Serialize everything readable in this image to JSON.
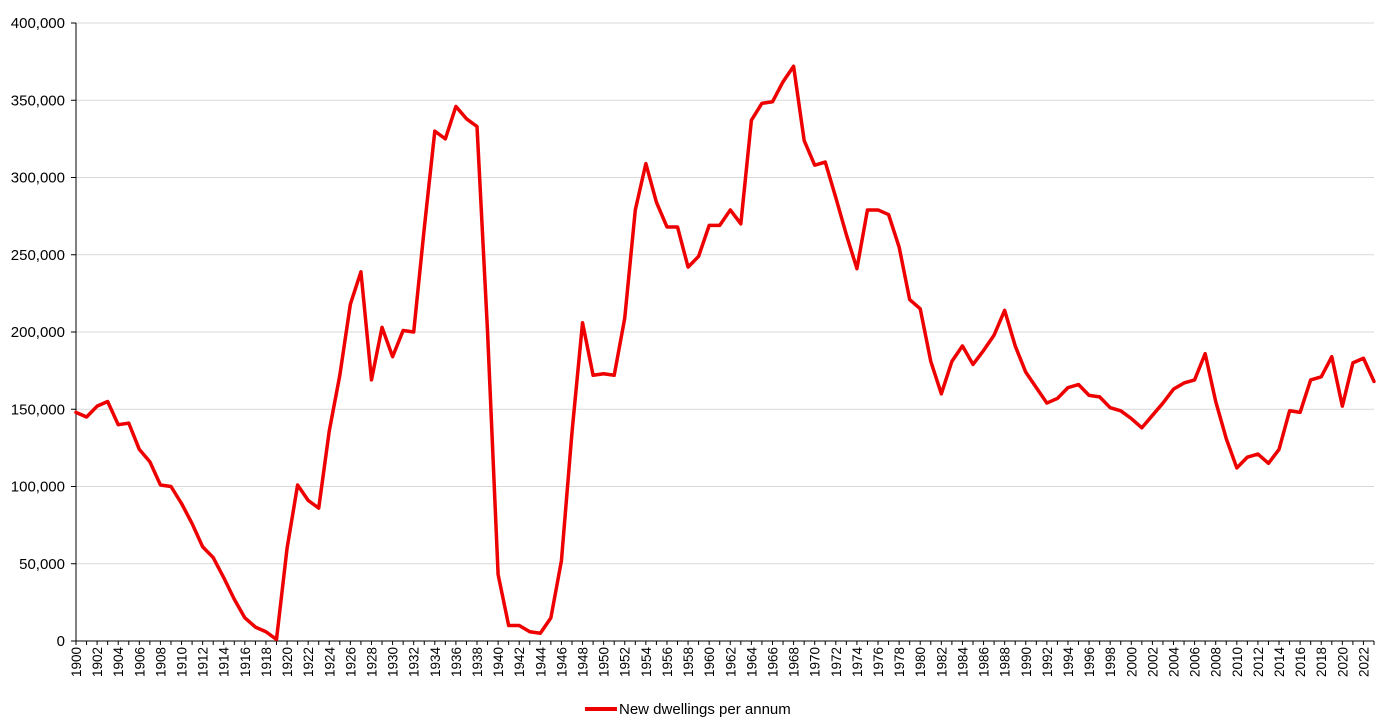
{
  "chart_data": {
    "type": "line",
    "title": "",
    "xlabel": "",
    "ylabel": "",
    "x_start": 1900,
    "x_end": 2023,
    "xlim": [
      1900,
      2023
    ],
    "ylim": [
      0,
      400000
    ],
    "yticks": [
      0,
      50000,
      100000,
      150000,
      200000,
      250000,
      300000,
      350000,
      400000
    ],
    "ytick_labels": [
      "0",
      "50,000",
      "100,000",
      "150,000",
      "200,000",
      "250,000",
      "300,000",
      "350,000",
      "400,000"
    ],
    "xtick_labels": [
      "1900",
      "1902",
      "1904",
      "1906",
      "1908",
      "1910",
      "1912",
      "1914",
      "1916",
      "1918",
      "1920",
      "1922",
      "1924",
      "1926",
      "1928",
      "1930",
      "1932",
      "1934",
      "1936",
      "1938",
      "1940",
      "1942",
      "1944",
      "1946",
      "1948",
      "1950",
      "1952",
      "1954",
      "1956",
      "1958",
      "1960",
      "1962",
      "1964",
      "1966",
      "1968",
      "1970",
      "1972",
      "1974",
      "1976",
      "1978",
      "1980",
      "1982",
      "1984",
      "1986",
      "1988",
      "1990",
      "1992",
      "1994",
      "1996",
      "1998",
      "2000",
      "2002",
      "2004",
      "2006",
      "2008",
      "2010",
      "2012",
      "2014",
      "2016",
      "2018",
      "2020",
      "2022"
    ],
    "grid": "horizontal",
    "legend_position": "bottom",
    "colors": {
      "line": "#ee0000",
      "grid": "#d9d9d9",
      "axis": "#000000"
    },
    "series": [
      {
        "name": "New dwellings per annum",
        "x": [
          1900,
          1901,
          1902,
          1903,
          1904,
          1905,
          1906,
          1907,
          1908,
          1909,
          1910,
          1911,
          1912,
          1913,
          1914,
          1915,
          1916,
          1917,
          1918,
          1919,
          1920,
          1921,
          1922,
          1923,
          1924,
          1925,
          1926,
          1927,
          1928,
          1929,
          1930,
          1931,
          1932,
          1933,
          1934,
          1935,
          1936,
          1937,
          1938,
          1939,
          1940,
          1941,
          1942,
          1943,
          1944,
          1945,
          1946,
          1947,
          1948,
          1949,
          1950,
          1951,
          1952,
          1953,
          1954,
          1955,
          1956,
          1957,
          1958,
          1959,
          1960,
          1961,
          1962,
          1963,
          1964,
          1965,
          1966,
          1967,
          1968,
          1969,
          1970,
          1971,
          1972,
          1973,
          1974,
          1975,
          1976,
          1977,
          1978,
          1979,
          1980,
          1981,
          1982,
          1983,
          1984,
          1985,
          1986,
          1987,
          1988,
          1989,
          1990,
          1991,
          1992,
          1993,
          1994,
          1995,
          1996,
          1997,
          1998,
          1999,
          2000,
          2001,
          2002,
          2003,
          2004,
          2005,
          2006,
          2007,
          2008,
          2009,
          2010,
          2011,
          2012,
          2013,
          2014,
          2015,
          2016,
          2017,
          2018,
          2019,
          2020,
          2021,
          2022,
          2023
        ],
        "values": [
          148000,
          145000,
          152000,
          155000,
          140000,
          141000,
          124000,
          116000,
          101000,
          100000,
          89000,
          76000,
          61000,
          54000,
          41000,
          27000,
          15000,
          9000,
          6000,
          1000,
          60000,
          101000,
          91000,
          86000,
          136000,
          172000,
          218000,
          239000,
          169000,
          203000,
          184000,
          201000,
          200000,
          267000,
          330000,
          325000,
          346000,
          338000,
          333000,
          200000,
          43000,
          10000,
          10000,
          6000,
          5000,
          15000,
          52000,
          135000,
          206000,
          172000,
          173000,
          172000,
          209000,
          279000,
          309000,
          284000,
          268000,
          268000,
          242000,
          249000,
          269000,
          269000,
          279000,
          270000,
          337000,
          348000,
          349000,
          362000,
          372000,
          324000,
          308000,
          310000,
          287000,
          263000,
          241000,
          279000,
          279000,
          276000,
          255000,
          221000,
          215000,
          181000,
          160000,
          181000,
          191000,
          179000,
          188000,
          198000,
          214000,
          191000,
          174000,
          164000,
          154000,
          157000,
          164000,
          166000,
          159000,
          158000,
          151000,
          149000,
          144000,
          138000,
          146000,
          154000,
          163000,
          167000,
          169000,
          186000,
          155000,
          131000,
          112000,
          119000,
          121000,
          115000,
          124000,
          149000,
          148000,
          169000,
          171000,
          184000,
          152000,
          180000,
          183000,
          168000
        ]
      }
    ]
  }
}
